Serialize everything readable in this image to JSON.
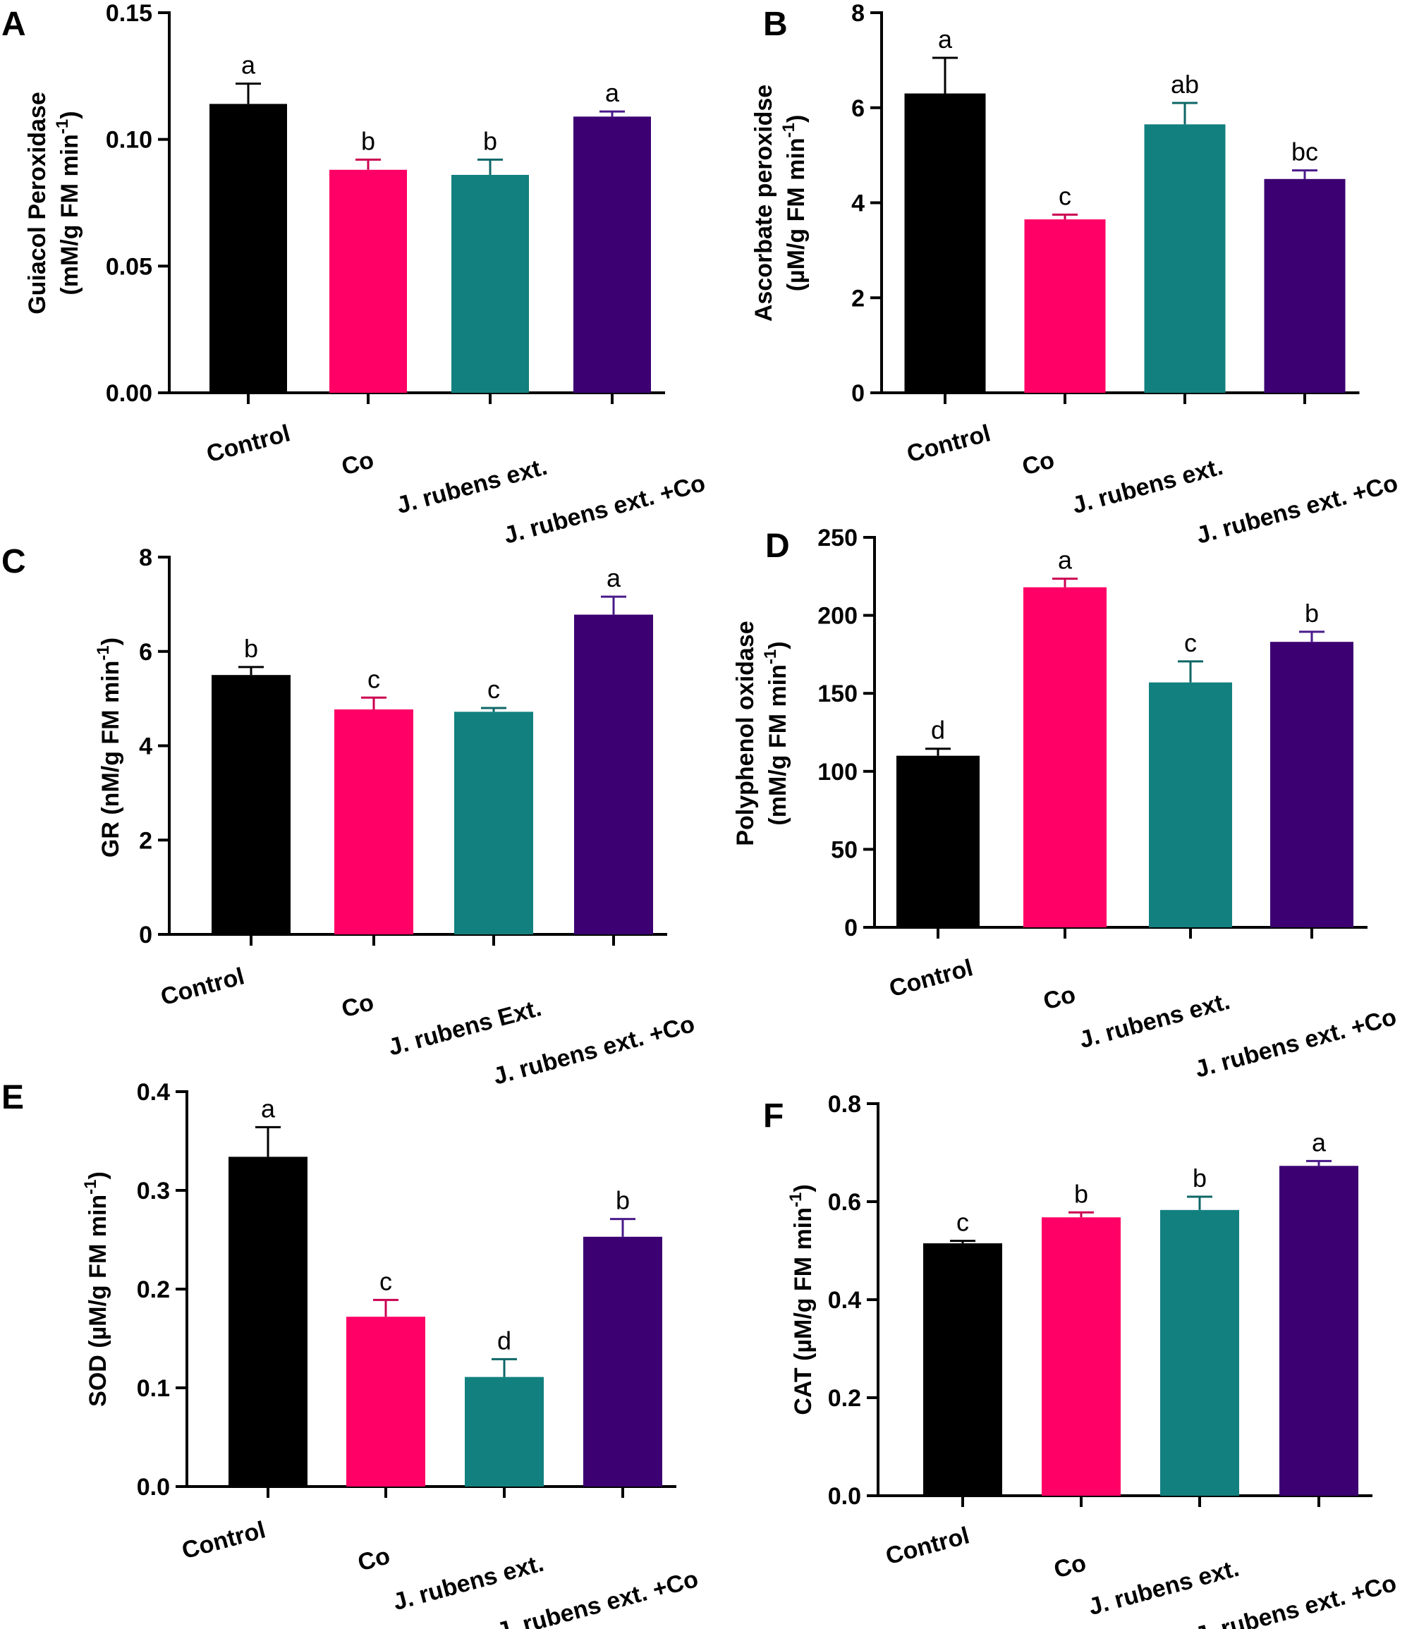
{
  "chart_data": [
    {
      "panel": "A",
      "type": "bar",
      "ylabel_lines": [
        "Guiacol Peroxidase",
        "(mM/g FM min",
        "-1",
        ")"
      ],
      "categories": [
        "Control",
        "Co",
        "J. rubens ext.",
        "J. rubens ext. +Co"
      ],
      "values": [
        0.114,
        0.088,
        0.086,
        0.109
      ],
      "errors": [
        0.008,
        0.004,
        0.006,
        0.002
      ],
      "letters": [
        "a",
        "b",
        "b",
        "a"
      ],
      "ylim": [
        0,
        0.15
      ],
      "yticks": [
        "0.00",
        "0.05",
        "0.10",
        "0.15"
      ]
    },
    {
      "panel": "B",
      "type": "bar",
      "ylabel_lines": [
        "Ascorbate peroxidse",
        "(µM/g FM min",
        "-1",
        ")"
      ],
      "categories": [
        "Control",
        "Co",
        "J. rubens ext.",
        "J. rubens ext. +Co"
      ],
      "values": [
        6.3,
        3.65,
        5.65,
        4.5
      ],
      "errors": [
        0.75,
        0.1,
        0.45,
        0.18
      ],
      "letters": [
        "a",
        "c",
        "ab",
        "bc"
      ],
      "ylim": [
        0,
        8
      ],
      "yticks": [
        "0",
        "2",
        "4",
        "6",
        "8"
      ]
    },
    {
      "panel": "C",
      "type": "bar",
      "ylabel_lines": [
        "GR (nM/g FM min",
        "-1",
        ")"
      ],
      "categories": [
        "Control",
        "Co",
        "J. rubens Ext.",
        "J. rubens ext. +Co"
      ],
      "values": [
        5.5,
        4.77,
        4.72,
        6.78
      ],
      "errors": [
        0.17,
        0.25,
        0.08,
        0.38
      ],
      "letters": [
        "b",
        "c",
        "c",
        "a"
      ],
      "ylim": [
        0,
        8
      ],
      "yticks": [
        "0",
        "2",
        "4",
        "6",
        "8"
      ]
    },
    {
      "panel": "D",
      "type": "bar",
      "ylabel_lines": [
        "Polyphenol oxidase",
        "(mM/g FM min",
        "-1",
        ")"
      ],
      "categories": [
        "Control",
        "Co",
        "J. rubens ext.",
        "J. rubens ext. +Co"
      ],
      "values": [
        110,
        218,
        157,
        183
      ],
      "errors": [
        4.5,
        5.5,
        13.5,
        6.5
      ],
      "letters": [
        "d",
        "a",
        "c",
        "b"
      ],
      "ylim": [
        0,
        250
      ],
      "yticks": [
        "0",
        "50",
        "100",
        "150",
        "200",
        "250"
      ]
    },
    {
      "panel": "E",
      "type": "bar",
      "ylabel_lines": [
        "SOD (µM/g FM min",
        "-1",
        ")"
      ],
      "categories": [
        "Control",
        "Co",
        "J. rubens ext.",
        "J. rubens ext. +Co"
      ],
      "values": [
        0.334,
        0.172,
        0.111,
        0.253
      ],
      "errors": [
        0.03,
        0.017,
        0.018,
        0.018
      ],
      "letters": [
        "a",
        "c",
        "d",
        "b"
      ],
      "ylim": [
        0,
        0.4
      ],
      "yticks": [
        "0.0",
        "0.1",
        "0.2",
        "0.3",
        "0.4"
      ]
    },
    {
      "panel": "F",
      "type": "bar",
      "ylabel_lines": [
        "CAT (µM/g FM min",
        "-1",
        ")"
      ],
      "categories": [
        "Control",
        "Co",
        "J. rubens ext.",
        "J. rubens ext. +Co"
      ],
      "values": [
        0.515,
        0.568,
        0.583,
        0.673
      ],
      "errors": [
        0.005,
        0.01,
        0.027,
        0.01
      ],
      "letters": [
        "c",
        "b",
        "b",
        "a"
      ],
      "ylim": [
        0,
        0.8
      ],
      "yticks": [
        "0.0",
        "0.2",
        "0.4",
        "0.6",
        "0.8"
      ]
    }
  ],
  "colors": {
    "bars": [
      "#000000",
      "#ff0066",
      "#138080",
      "#3c0073"
    ],
    "errors": [
      "#000000",
      "#cc0050",
      "#0e6666",
      "#4a1a8a"
    ],
    "axis": "#000000"
  }
}
